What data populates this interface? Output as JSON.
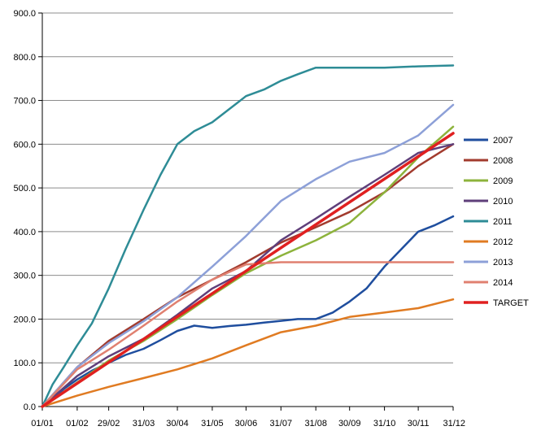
{
  "chart_data": {
    "type": "line",
    "title": "",
    "xlabel": "",
    "ylabel": "",
    "x_ticks": [
      "01/01",
      "01/02",
      "29/02",
      "31/03",
      "30/04",
      "31/05",
      "30/06",
      "31/07",
      "31/08",
      "30/09",
      "31/10",
      "30/11",
      "31/12"
    ],
    "y_ticks": [
      "0.0",
      "100.0",
      "200.0",
      "300.0",
      "400.0",
      "500.0",
      "600.0",
      "700.0",
      "800.0",
      "900.0"
    ],
    "x_day_of_year": [
      1,
      32,
      60,
      91,
      121,
      152,
      182,
      213,
      244,
      274,
      305,
      335,
      366
    ],
    "xlim": [
      1,
      366
    ],
    "ylim": [
      0,
      900
    ],
    "grid": "horizontal",
    "legend_position": "right",
    "series": [
      {
        "name": "2007",
        "color": "#1F4E9E",
        "width": 2.5,
        "x": [
          1,
          20,
          32,
          45,
          60,
          75,
          91,
          106,
          121,
          136,
          152,
          167,
          182,
          198,
          213,
          228,
          244,
          259,
          274,
          289,
          305,
          320,
          335,
          350,
          366
        ],
        "y": [
          0,
          40,
          62,
          82,
          100,
          118,
          132,
          152,
          173,
          185,
          180,
          184,
          187,
          192,
          196,
          200,
          200,
          215,
          240,
          270,
          320,
          360,
          400,
          415,
          435
        ]
      },
      {
        "name": "2008",
        "color": "#A23B2E",
        "width": 2.5,
        "x": [
          1,
          32,
          60,
          91,
          121,
          152,
          182,
          213,
          244,
          274,
          305,
          335,
          366
        ],
        "y": [
          0,
          90,
          150,
          200,
          250,
          290,
          330,
          375,
          410,
          445,
          490,
          550,
          600
        ]
      },
      {
        "name": "2009",
        "color": "#8DB33C",
        "width": 2.5,
        "x": [
          1,
          32,
          60,
          91,
          121,
          152,
          182,
          213,
          244,
          274,
          305,
          335,
          366
        ],
        "y": [
          0,
          55,
          105,
          150,
          200,
          255,
          305,
          345,
          380,
          420,
          490,
          570,
          640
        ]
      },
      {
        "name": "2010",
        "color": "#5F3F7A",
        "width": 2.5,
        "x": [
          1,
          32,
          60,
          91,
          121,
          152,
          182,
          213,
          244,
          274,
          305,
          335,
          366
        ],
        "y": [
          0,
          70,
          115,
          155,
          210,
          270,
          310,
          380,
          430,
          480,
          530,
          580,
          600
        ]
      },
      {
        "name": "2011",
        "color": "#2E8C96",
        "width": 2.5,
        "x": [
          1,
          10,
          20,
          32,
          45,
          60,
          75,
          91,
          106,
          121,
          136,
          152,
          167,
          182,
          198,
          213,
          228,
          244,
          259,
          274,
          305,
          335,
          366
        ],
        "y": [
          0,
          50,
          90,
          140,
          190,
          270,
          360,
          450,
          530,
          600,
          630,
          650,
          680,
          710,
          725,
          745,
          760,
          775,
          775,
          775,
          775,
          778,
          780
        ]
      },
      {
        "name": "2012",
        "color": "#E07B22",
        "width": 2.5,
        "x": [
          1,
          32,
          60,
          91,
          121,
          152,
          182,
          213,
          244,
          274,
          305,
          335,
          366
        ],
        "y": [
          0,
          25,
          45,
          65,
          85,
          110,
          140,
          170,
          185,
          205,
          215,
          225,
          245
        ]
      },
      {
        "name": "2013",
        "color": "#8DA0D8",
        "width": 2.5,
        "x": [
          1,
          32,
          60,
          91,
          121,
          152,
          182,
          213,
          244,
          274,
          305,
          335,
          366
        ],
        "y": [
          0,
          90,
          145,
          195,
          250,
          320,
          390,
          470,
          520,
          560,
          580,
          620,
          690
        ]
      },
      {
        "name": "2014",
        "color": "#E08070",
        "width": 2.5,
        "x": [
          1,
          32,
          60,
          91,
          121,
          152,
          182,
          213,
          244,
          274,
          305,
          335,
          366
        ],
        "y": [
          0,
          85,
          130,
          185,
          240,
          290,
          325,
          330,
          330,
          330,
          330,
          330,
          330
        ]
      },
      {
        "name": "TARGET",
        "color": "#E02020",
        "width": 3.5,
        "x": [
          1,
          366
        ],
        "y": [
          0,
          625
        ]
      }
    ]
  }
}
